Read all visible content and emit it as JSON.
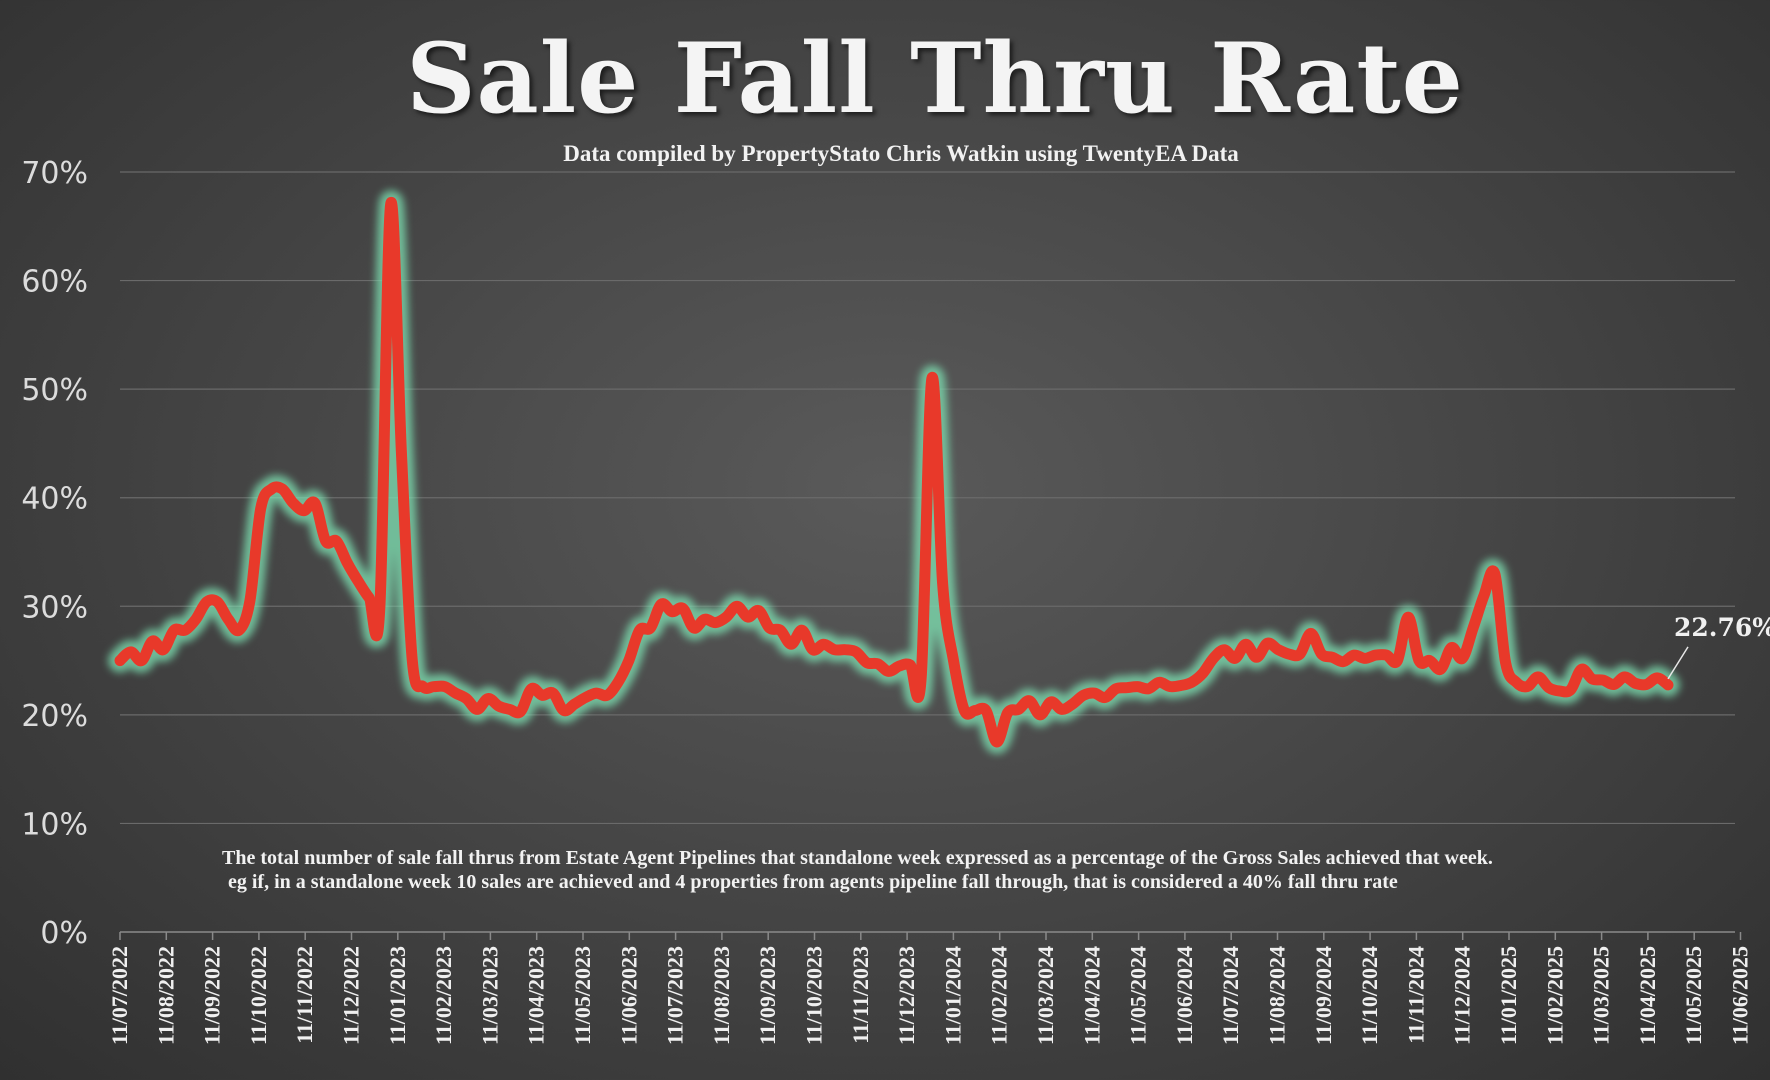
{
  "title": "Sale Fall Thru Rate",
  "subtitle": "Data compiled by PropertyStato Chris Watkin using TwentyEA Data",
  "note": {
    "line1": "The total number of sale fall thrus from Estate Agent Pipelines that standalone week expressed as a percentage of the Gross Sales achieved that week.",
    "line2": "eg if, in a standalone week 10 sales are achieved and 4 properties from agents pipeline fall through, that is considered a 40%  fall thru rate"
  },
  "colors": {
    "line": "#e8392a",
    "glow": "#7fe3b4",
    "grid": "#6a6a6a",
    "background": "#454545"
  },
  "chart_data": {
    "type": "line",
    "title": "Sale Fall Thru Rate",
    "ylim": [
      0,
      70
    ],
    "yticks": [
      "0%",
      "10%",
      "20%",
      "30%",
      "40%",
      "50%",
      "60%",
      "70%"
    ],
    "x_tick_labels": [
      "11/07/2022",
      "11/08/2022",
      "11/09/2022",
      "11/10/2022",
      "11/11/2022",
      "11/12/2022",
      "11/01/2023",
      "11/02/2023",
      "11/03/2023",
      "11/04/2023",
      "11/05/2023",
      "11/06/2023",
      "11/07/2023",
      "11/08/2023",
      "11/09/2023",
      "11/10/2023",
      "11/11/2023",
      "11/12/2023",
      "11/01/2024",
      "11/02/2024",
      "11/03/2024",
      "11/04/2024",
      "11/05/2024",
      "11/06/2024",
      "11/07/2024",
      "11/08/2024",
      "11/09/2024",
      "11/10/2024",
      "11/11/2024",
      "11/12/2024",
      "11/01/2025",
      "11/02/2025",
      "11/03/2025",
      "11/04/2025",
      "11/05/2025",
      "11/06/2025"
    ],
    "grid": true,
    "last_value_label": "22.76%",
    "series": [
      {
        "values": [
          25,
          25.8,
          25,
          26.8,
          26,
          27.8,
          27.8,
          28.8,
          30.4,
          30.4,
          28.8,
          27.8,
          30.5,
          39,
          40.8,
          40.8,
          39.5,
          38.8,
          39.5,
          36,
          36,
          34,
          32.3,
          30.8,
          29.8,
          67,
          44,
          25,
          22.6,
          22.6,
          22.6,
          22,
          21.5,
          20.5,
          21.5,
          20.8,
          20.5,
          20.3,
          22.4,
          21.8,
          22,
          20.4,
          21,
          21.6,
          22,
          21.8,
          23,
          25,
          27.8,
          28,
          30.2,
          29.5,
          29.8,
          28,
          28.8,
          28.5,
          29,
          30,
          29,
          29.6,
          28,
          27.8,
          26.5,
          27.8,
          26,
          26.5,
          26,
          26,
          25.8,
          24.8,
          24.7,
          24,
          24.5,
          24.6,
          23.3,
          51,
          32,
          25,
          20.4,
          20.4,
          20.4,
          17.5,
          20.2,
          20.5,
          21.3,
          20,
          21.2,
          20.5,
          21,
          21.8,
          22,
          21.6,
          22.4,
          22.5,
          22.6,
          22.4,
          23,
          22.6,
          22.7,
          23,
          23.8,
          25.2,
          26,
          25.2,
          26.5,
          25.3,
          26.6,
          26,
          25.6,
          25.6,
          27.5,
          25.6,
          25.3,
          24.9,
          25.5,
          25.2,
          25.5,
          25.5,
          25,
          29,
          25,
          25,
          24.2,
          26.2,
          25.2,
          28,
          31,
          33,
          24.8,
          23,
          22.6,
          23.5,
          22.5,
          22.2,
          22.3,
          24.2,
          23.3,
          23.2,
          22.8,
          23.5,
          22.9,
          22.8,
          23.4,
          22.76
        ]
      }
    ]
  }
}
